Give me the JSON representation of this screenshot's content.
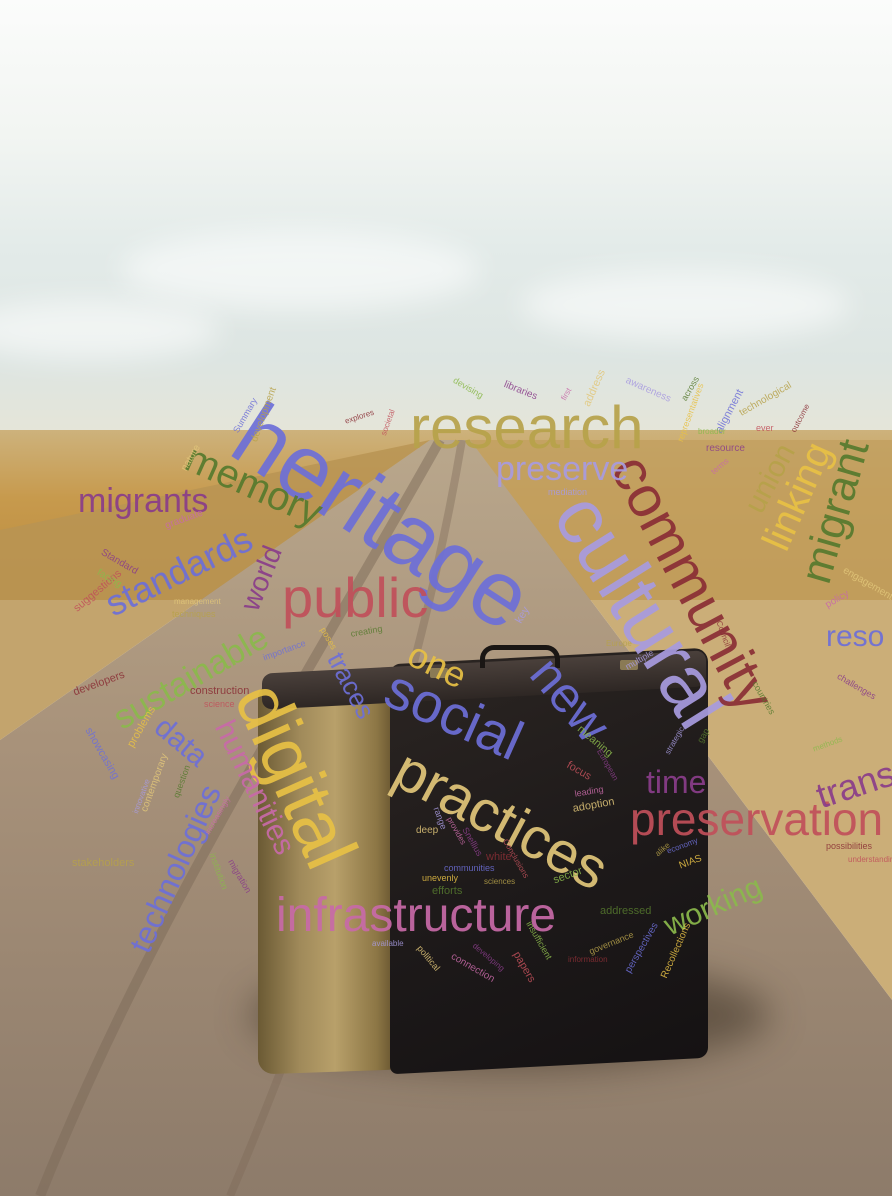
{
  "image_description_words": {
    "big": [
      "heritage",
      "cultural",
      "community",
      "research",
      "digital",
      "practices",
      "social",
      "infrastructure",
      "public",
      "memory",
      "migrants",
      "new",
      "standards",
      "sustainable",
      "preservation",
      "migrant",
      "linking",
      "union",
      "preserve",
      "time",
      "one",
      "technologies",
      "humanities",
      "working",
      "data",
      "traces",
      "world",
      "transn",
      "reso"
    ],
    "small": [
      "Summary",
      "development",
      "explores",
      "societal",
      "devising",
      "libraries",
      "first",
      "address",
      "awareness",
      "across",
      "representatives",
      "alignment",
      "technological",
      "outcome",
      "ever",
      "broader",
      "resource",
      "terms",
      "nature",
      "mediation",
      "even",
      "approach",
      "archives",
      "Europe",
      "Council",
      "focus",
      "meaning",
      "European",
      "leading",
      "adoption",
      "strategic",
      "gap",
      "Recollections",
      "perspectives",
      "governance",
      "information",
      "papers",
      "insufficient",
      "developing",
      "connection",
      "political",
      "available",
      "efforts",
      "unevenly",
      "communities",
      "sciences",
      "white",
      "Conclusions",
      "sector",
      "Snellius",
      "provides",
      "deep",
      "range",
      "addressed",
      "NIAS",
      "economy",
      "alike",
      "possibilities",
      "understanding",
      "methods",
      "challenges",
      "policy",
      "engagement",
      "key",
      "creating",
      "poses",
      "importance",
      "techniques",
      "construction",
      "science",
      "institution",
      "migration",
      "increasingly",
      "contemporary",
      "innovative",
      "question",
      "problems",
      "showcasing",
      "stakeholders",
      "developers",
      "suggestions",
      "facing",
      "Standard",
      "graduate",
      "management",
      "multiple",
      "countries"
    ]
  },
  "colors": {
    "blue_violet": "#6d6fd8",
    "olive": "#b7a24a",
    "maroon": "#8a2e35",
    "rose": "#c1505a",
    "green": "#8bb94c",
    "purple": "#8a3d8a",
    "pink": "#c86aa8",
    "tan": "#e2c77a",
    "lavender": "#a89be0",
    "dark_green": "#567a2e",
    "yellow": "#e8c145"
  }
}
